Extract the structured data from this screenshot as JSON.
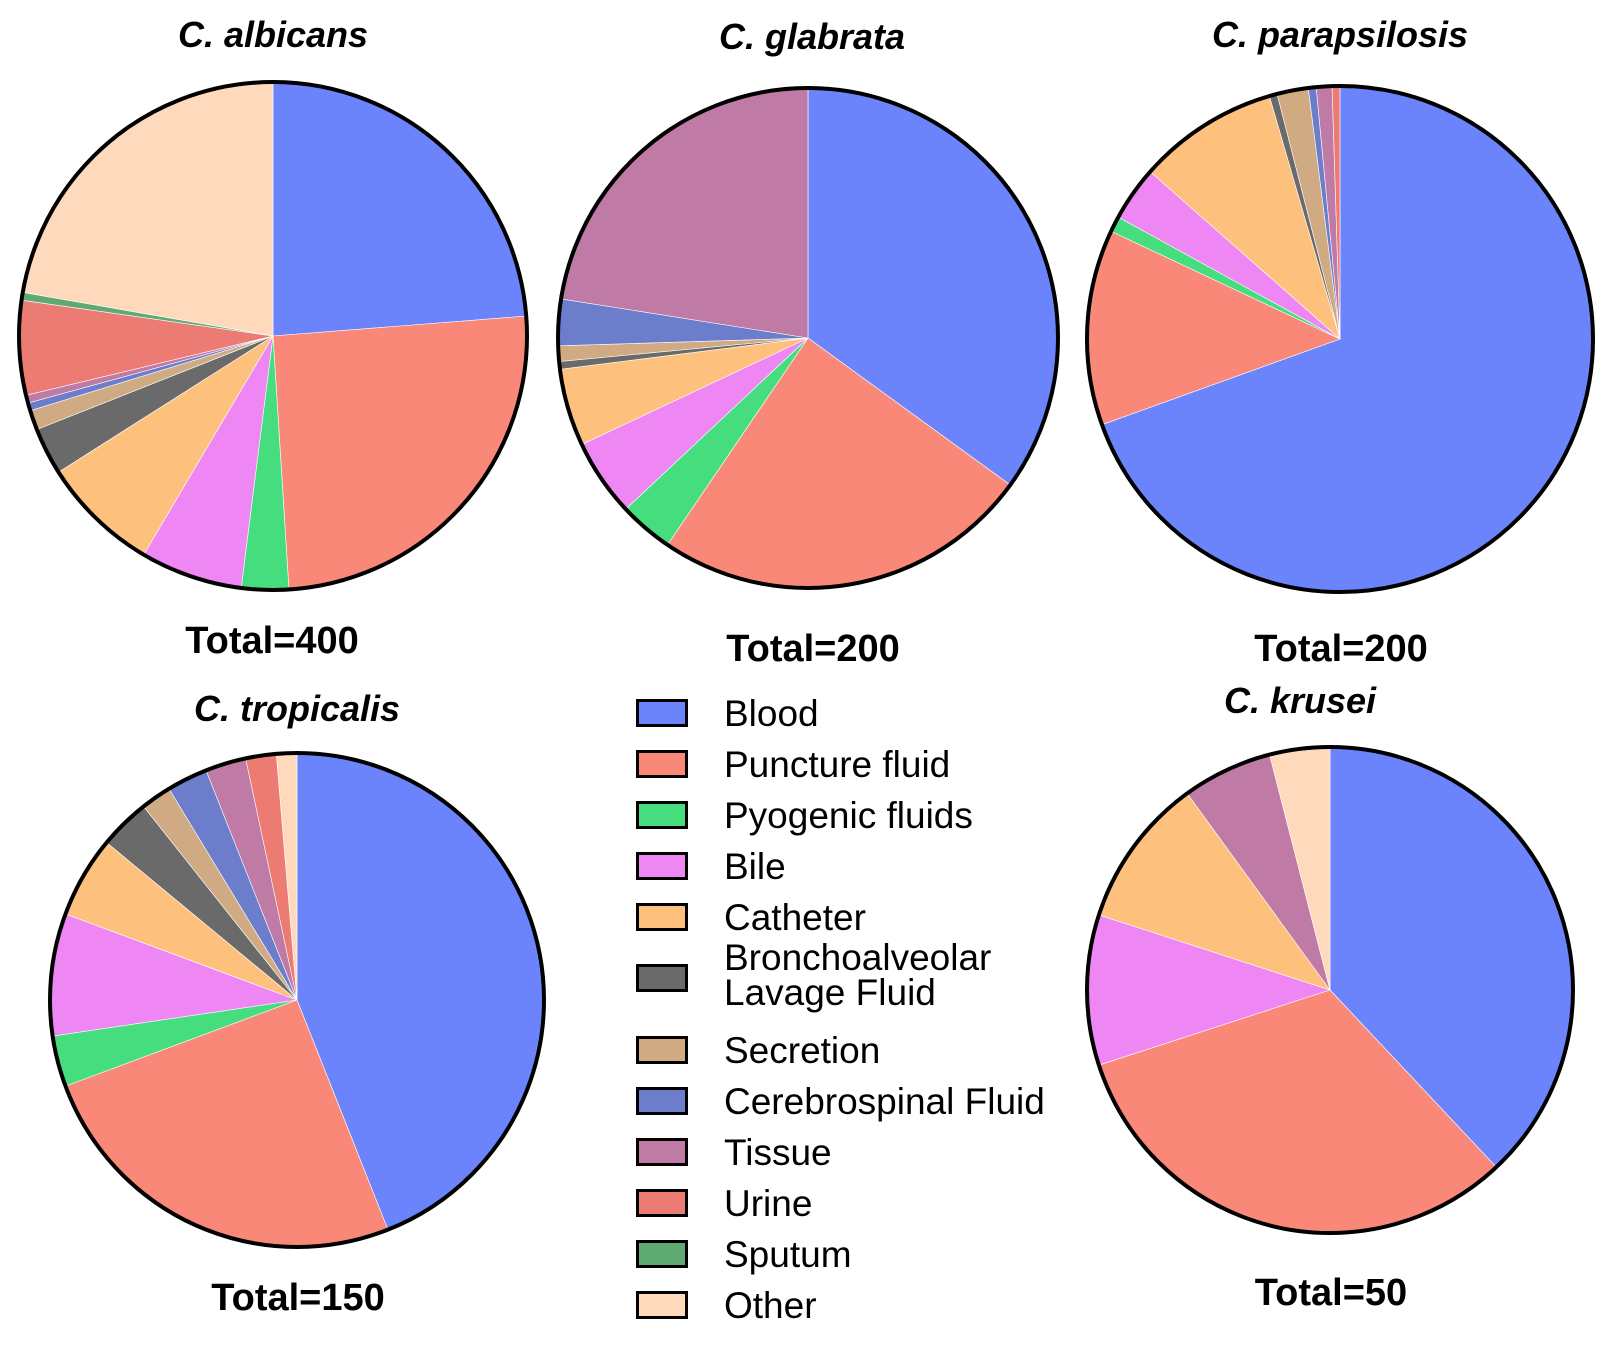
{
  "legend": [
    {
      "label": "Blood",
      "color": "#6B84FB"
    },
    {
      "label": "Puncture fluid",
      "color": "#FA8878"
    },
    {
      "label": "Pyogenic fluids",
      "color": "#45DD7E"
    },
    {
      "label": "Bile",
      "color": "#EE86F3"
    },
    {
      "label": "Catheter",
      "color": "#FEC17D"
    },
    {
      "label": "Bronchoalveolar Lavage Fluid",
      "color": "#6A6A6A"
    },
    {
      "label": "Secretion",
      "color": "#D0AA82"
    },
    {
      "label": "Cerebrospinal Fluid",
      "color": "#6C7DCB"
    },
    {
      "label": "Tissue",
      "color": "#BF7AA5"
    },
    {
      "label": "Urine",
      "color": "#EC7B73"
    },
    {
      "label": "Sputum",
      "color": "#5EAA72"
    },
    {
      "label": "Other",
      "color": "#FED9BB"
    }
  ],
  "chart_data": [
    {
      "type": "pie",
      "title": "C. albicans",
      "total_label": "Total=400",
      "categories": [
        "Blood",
        "Puncture fluid",
        "Pyogenic fluids",
        "Bile",
        "Catheter",
        "Bronchoalveolar Lavage Fluid",
        "Secretion",
        "Cerebrospinal Fluid",
        "Tissue",
        "Urine",
        "Sputum",
        "Other"
      ],
      "values": [
        95,
        101,
        12,
        26,
        30,
        12,
        5,
        2,
        2,
        24,
        2,
        89
      ]
    },
    {
      "type": "pie",
      "title": "C. glabrata",
      "total_label": "Total=200",
      "categories": [
        "Blood",
        "Puncture fluid",
        "Pyogenic fluids",
        "Bile",
        "Catheter",
        "Bronchoalveolar Lavage Fluid",
        "Secretion",
        "Cerebrospinal Fluid",
        "Tissue",
        "Urine",
        "Sputum",
        "Other"
      ],
      "values": [
        70,
        49,
        7,
        10,
        10,
        1,
        2,
        6,
        45,
        0,
        0,
        0
      ]
    },
    {
      "type": "pie",
      "title": "C. parapsilosis",
      "total_label": "Total=200",
      "categories": [
        "Blood",
        "Puncture fluid",
        "Pyogenic fluids",
        "Bile",
        "Catheter",
        "Bronchoalveolar Lavage Fluid",
        "Secretion",
        "Cerebrospinal Fluid",
        "Tissue",
        "Urine",
        "Sputum",
        "Other"
      ],
      "values": [
        139,
        25,
        2,
        7,
        18,
        1,
        4,
        1,
        2,
        1,
        0,
        0
      ]
    },
    {
      "type": "pie",
      "title": "C. tropicalis",
      "total_label": "Total=150",
      "categories": [
        "Blood",
        "Puncture fluid",
        "Pyogenic fluids",
        "Bile",
        "Catheter",
        "Bronchoalveolar Lavage Fluid",
        "Secretion",
        "Cerebrospinal Fluid",
        "Tissue",
        "Urine",
        "Sputum",
        "Other"
      ],
      "values": [
        66,
        38,
        5,
        12,
        8,
        5,
        3,
        4,
        4,
        3,
        0,
        2
      ]
    },
    {
      "type": "pie",
      "title": "C. krusei",
      "total_label": "Total=50",
      "categories": [
        "Blood",
        "Puncture fluid",
        "Pyogenic fluids",
        "Bile",
        "Catheter",
        "Bronchoalveolar Lavage Fluid",
        "Secretion",
        "Cerebrospinal Fluid",
        "Tissue",
        "Urine",
        "Sputum",
        "Other"
      ],
      "values": [
        19,
        16,
        0,
        5,
        5,
        0,
        0,
        0,
        3,
        0,
        0,
        2
      ]
    }
  ]
}
